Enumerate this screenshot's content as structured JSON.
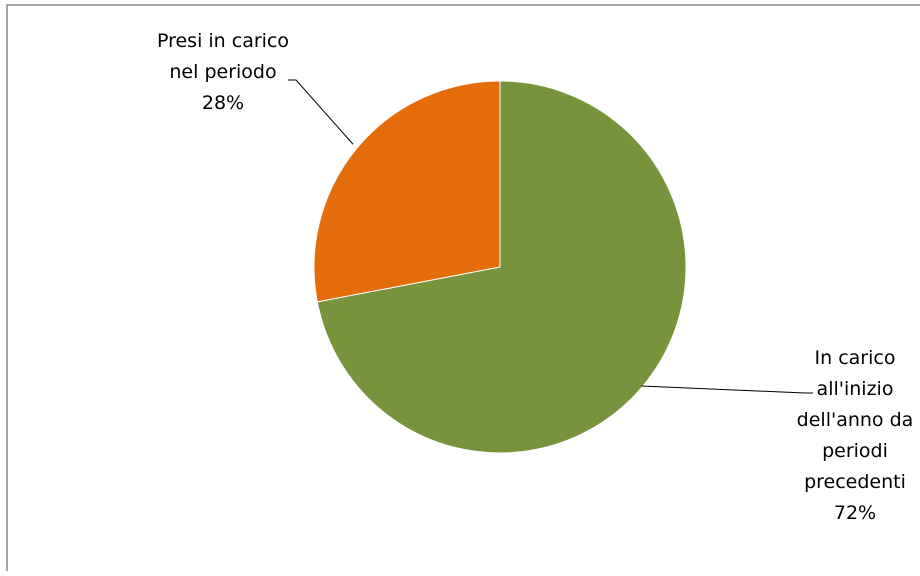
{
  "chart_data": {
    "type": "pie",
    "title": "",
    "slices": [
      {
        "label_lines": [
          "In carico",
          "all'inizio",
          "dell'anno da",
          "periodi",
          "precedenti"
        ],
        "percent_label": "72%",
        "value": 72,
        "color": "#77933c"
      },
      {
        "label_lines": [
          "Presi in carico",
          "nel periodo"
        ],
        "percent_label": "28%",
        "value": 28,
        "color": "#e46c0a"
      }
    ],
    "start_angle_deg": 0,
    "direction": "clockwise",
    "legend": "none",
    "data_labels": "outside-with-leader-lines"
  }
}
